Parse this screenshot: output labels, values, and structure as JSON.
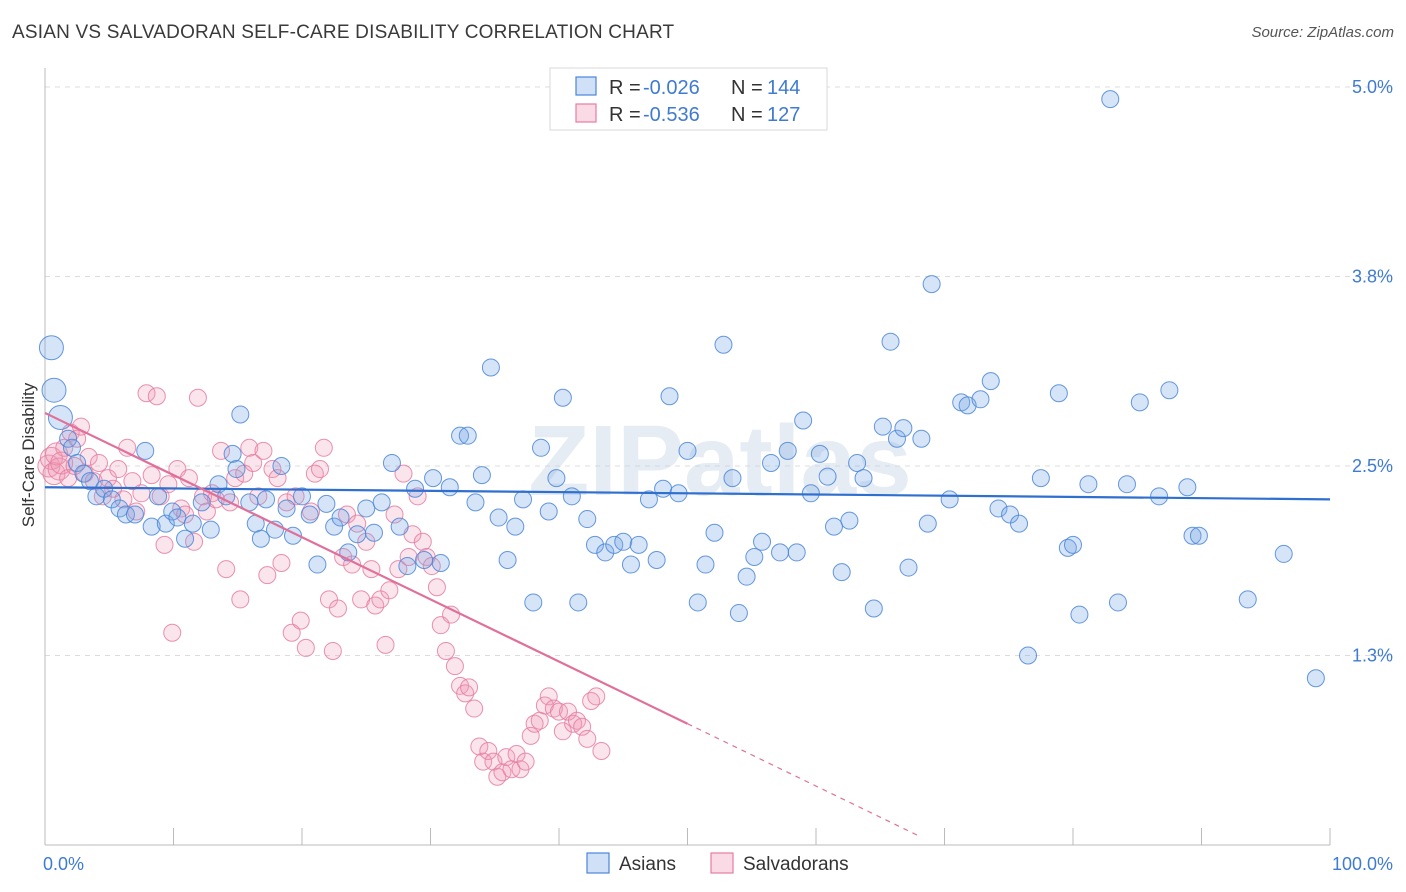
{
  "title": "ASIAN VS SALVADORAN SELF-CARE DISABILITY CORRELATION CHART",
  "source": "Source: ZipAtlas.com",
  "watermark": "ZIPatlas",
  "colors": {
    "asian_fill": "rgba(120,165,230,0.30)",
    "asian_stroke": "#4a86d8",
    "asian_line": "#2f6fd0",
    "salvadoran_fill": "rgba(240,150,180,0.25)",
    "salvadoran_stroke": "#e67ca0",
    "salvadoran_line": "#e0709a",
    "tick_text": "#3f7bd1",
    "grid": "#dcdcdc"
  },
  "legend": {
    "asian": {
      "r_label": "R =",
      "r_value": "-0.026",
      "n_label": "N =",
      "n_value": "144"
    },
    "salvadoran": {
      "r_label": "R =",
      "r_value": "-0.536",
      "n_label": "N =",
      "n_value": "127"
    }
  },
  "bottom_legend": [
    "Asians",
    "Salvadorans"
  ],
  "chart_data": {
    "type": "scatter",
    "title": "ASIAN VS SALVADORAN SELF-CARE DISABILITY CORRELATION CHART",
    "xlabel": "",
    "ylabel": "Self-Care Disability",
    "xlim": [
      0,
      100
    ],
    "ylim": [
      0.0,
      5.0
    ],
    "x_tick_labels": [
      "0.0%",
      "100.0%"
    ],
    "y_ticks": [
      1.25,
      2.5,
      3.75,
      5.0
    ],
    "y_tick_labels": [
      "1.3%",
      "2.5%",
      "3.8%",
      "5.0%"
    ],
    "grid": true,
    "legend_position": "top-center",
    "series": [
      {
        "name": "Asians",
        "r": -0.026,
        "n": 144,
        "trend": {
          "x": [
            0,
            100
          ],
          "y": [
            2.36,
            2.28
          ]
        },
        "points": [
          [
            0.5,
            3.28
          ],
          [
            0.7,
            3.0
          ],
          [
            1.2,
            2.82
          ],
          [
            1.8,
            2.68
          ],
          [
            2.1,
            2.62
          ],
          [
            2.5,
            2.52
          ],
          [
            3.0,
            2.45
          ],
          [
            3.5,
            2.4
          ],
          [
            4.0,
            2.3
          ],
          [
            4.6,
            2.35
          ],
          [
            5.2,
            2.28
          ],
          [
            5.8,
            2.22
          ],
          [
            6.3,
            2.18
          ],
          [
            7.0,
            2.18
          ],
          [
            7.8,
            2.6
          ],
          [
            8.3,
            2.1
          ],
          [
            8.8,
            2.3
          ],
          [
            9.4,
            2.12
          ],
          [
            9.9,
            2.2
          ],
          [
            10.3,
            2.16
          ],
          [
            10.9,
            2.02
          ],
          [
            11.5,
            2.12
          ],
          [
            12.2,
            2.26
          ],
          [
            12.9,
            2.08
          ],
          [
            13.5,
            2.38
          ],
          [
            14.1,
            2.3
          ],
          [
            14.6,
            2.58
          ],
          [
            14.9,
            2.48
          ],
          [
            15.2,
            2.84
          ],
          [
            15.9,
            2.26
          ],
          [
            16.4,
            2.12
          ],
          [
            16.8,
            2.02
          ],
          [
            17.2,
            2.28
          ],
          [
            17.9,
            2.08
          ],
          [
            18.4,
            2.5
          ],
          [
            18.8,
            2.22
          ],
          [
            19.3,
            2.04
          ],
          [
            20.0,
            2.3
          ],
          [
            20.6,
            2.18
          ],
          [
            21.2,
            1.85
          ],
          [
            21.9,
            2.25
          ],
          [
            22.5,
            2.1
          ],
          [
            23.0,
            2.16
          ],
          [
            23.6,
            1.93
          ],
          [
            24.3,
            2.05
          ],
          [
            25.0,
            2.22
          ],
          [
            25.6,
            2.06
          ],
          [
            26.2,
            2.26
          ],
          [
            27.0,
            2.52
          ],
          [
            27.6,
            2.1
          ],
          [
            28.2,
            1.84
          ],
          [
            28.8,
            2.35
          ],
          [
            29.5,
            1.88
          ],
          [
            30.2,
            2.42
          ],
          [
            30.8,
            1.86
          ],
          [
            31.5,
            2.36
          ],
          [
            32.3,
            2.7
          ],
          [
            32.9,
            2.7
          ],
          [
            33.5,
            2.26
          ],
          [
            34.0,
            2.44
          ],
          [
            34.7,
            3.15
          ],
          [
            35.3,
            2.16
          ],
          [
            36.0,
            1.88
          ],
          [
            36.6,
            2.1
          ],
          [
            37.2,
            2.28
          ],
          [
            38.0,
            1.6
          ],
          [
            38.6,
            2.62
          ],
          [
            39.2,
            2.2
          ],
          [
            39.8,
            2.42
          ],
          [
            40.3,
            2.95
          ],
          [
            41.0,
            2.3
          ],
          [
            41.5,
            1.6
          ],
          [
            42.2,
            2.15
          ],
          [
            42.8,
            1.98
          ],
          [
            43.6,
            1.93
          ],
          [
            44.3,
            1.98
          ],
          [
            45.0,
            2.0
          ],
          [
            45.6,
            1.85
          ],
          [
            46.2,
            1.98
          ],
          [
            47.0,
            2.28
          ],
          [
            47.6,
            1.88
          ],
          [
            48.1,
            2.35
          ],
          [
            48.6,
            2.96
          ],
          [
            49.3,
            2.32
          ],
          [
            50.0,
            2.6
          ],
          [
            50.8,
            1.6
          ],
          [
            51.4,
            1.85
          ],
          [
            52.1,
            2.06
          ],
          [
            52.8,
            3.3
          ],
          [
            53.5,
            2.42
          ],
          [
            54.0,
            1.53
          ],
          [
            54.6,
            1.77
          ],
          [
            55.2,
            1.9
          ],
          [
            55.8,
            2.0
          ],
          [
            56.5,
            2.52
          ],
          [
            57.2,
            1.93
          ],
          [
            57.8,
            2.6
          ],
          [
            58.5,
            1.93
          ],
          [
            59.0,
            2.8
          ],
          [
            59.6,
            2.32
          ],
          [
            60.3,
            2.58
          ],
          [
            60.9,
            2.43
          ],
          [
            61.4,
            2.1
          ],
          [
            62.0,
            1.8
          ],
          [
            62.6,
            2.14
          ],
          [
            63.2,
            2.52
          ],
          [
            63.7,
            2.42
          ],
          [
            64.5,
            1.56
          ],
          [
            65.2,
            2.76
          ],
          [
            65.8,
            3.32
          ],
          [
            66.3,
            2.68
          ],
          [
            66.8,
            2.75
          ],
          [
            67.2,
            1.83
          ],
          [
            68.2,
            2.68
          ],
          [
            68.7,
            2.12
          ],
          [
            69.0,
            3.7
          ],
          [
            70.4,
            2.28
          ],
          [
            71.3,
            2.92
          ],
          [
            71.8,
            2.9
          ],
          [
            72.8,
            2.94
          ],
          [
            73.6,
            3.06
          ],
          [
            74.2,
            2.22
          ],
          [
            75.1,
            2.18
          ],
          [
            75.8,
            2.12
          ],
          [
            76.5,
            1.25
          ],
          [
            77.5,
            2.42
          ],
          [
            78.9,
            2.98
          ],
          [
            79.6,
            1.96
          ],
          [
            80.0,
            1.98
          ],
          [
            80.5,
            1.52
          ],
          [
            81.2,
            2.38
          ],
          [
            82.9,
            4.92
          ],
          [
            83.5,
            1.6
          ],
          [
            84.2,
            2.38
          ],
          [
            85.2,
            2.92
          ],
          [
            86.7,
            2.3
          ],
          [
            87.5,
            3.0
          ],
          [
            88.9,
            2.36
          ],
          [
            89.3,
            2.04
          ],
          [
            89.8,
            2.04
          ],
          [
            93.6,
            1.62
          ],
          [
            96.4,
            1.92
          ],
          [
            98.9,
            1.1
          ]
        ]
      },
      {
        "name": "Salvadorans",
        "r": -0.536,
        "n": 127,
        "trend": {
          "x": [
            0,
            50
          ],
          "y": [
            2.85,
            0.8
          ]
        },
        "trend_dashed": {
          "x": [
            50,
            68
          ],
          "y": [
            0.8,
            0.06
          ]
        },
        "points": [
          [
            0.3,
            2.5
          ],
          [
            0.5,
            2.55
          ],
          [
            0.7,
            2.45
          ],
          [
            0.9,
            2.58
          ],
          [
            1.1,
            2.48
          ],
          [
            1.3,
            2.52
          ],
          [
            1.5,
            2.62
          ],
          [
            1.8,
            2.42
          ],
          [
            2.0,
            2.72
          ],
          [
            2.3,
            2.5
          ],
          [
            2.5,
            2.68
          ],
          [
            2.8,
            2.76
          ],
          [
            3.1,
            2.45
          ],
          [
            3.4,
            2.56
          ],
          [
            3.8,
            2.4
          ],
          [
            4.2,
            2.52
          ],
          [
            4.5,
            2.3
          ],
          [
            4.9,
            2.42
          ],
          [
            5.3,
            2.35
          ],
          [
            5.7,
            2.48
          ],
          [
            6.1,
            2.28
          ],
          [
            6.4,
            2.62
          ],
          [
            6.8,
            2.4
          ],
          [
            7.1,
            2.2
          ],
          [
            7.5,
            2.32
          ],
          [
            7.9,
            2.98
          ],
          [
            8.3,
            2.44
          ],
          [
            8.7,
            2.96
          ],
          [
            9.0,
            2.3
          ],
          [
            9.3,
            1.98
          ],
          [
            9.6,
            2.38
          ],
          [
            9.9,
            1.4
          ],
          [
            10.3,
            2.48
          ],
          [
            10.6,
            2.22
          ],
          [
            10.9,
            2.18
          ],
          [
            11.2,
            2.42
          ],
          [
            11.6,
            2.0
          ],
          [
            11.9,
            2.95
          ],
          [
            12.3,
            2.3
          ],
          [
            12.6,
            2.2
          ],
          [
            13.0,
            2.32
          ],
          [
            13.3,
            2.28
          ],
          [
            13.7,
            2.6
          ],
          [
            14.1,
            1.82
          ],
          [
            14.4,
            2.26
          ],
          [
            14.8,
            2.42
          ],
          [
            15.2,
            1.62
          ],
          [
            15.5,
            2.45
          ],
          [
            15.9,
            2.62
          ],
          [
            16.2,
            2.52
          ],
          [
            16.6,
            2.3
          ],
          [
            17.0,
            2.6
          ],
          [
            17.3,
            1.78
          ],
          [
            17.7,
            2.48
          ],
          [
            18.1,
            2.42
          ],
          [
            18.4,
            1.86
          ],
          [
            18.8,
            2.26
          ],
          [
            19.2,
            1.4
          ],
          [
            19.5,
            2.3
          ],
          [
            19.9,
            1.48
          ],
          [
            20.3,
            1.3
          ],
          [
            20.7,
            2.2
          ],
          [
            21.0,
            2.45
          ],
          [
            21.4,
            2.48
          ],
          [
            21.7,
            2.62
          ],
          [
            22.1,
            1.62
          ],
          [
            22.4,
            1.28
          ],
          [
            22.8,
            1.56
          ],
          [
            23.2,
            1.9
          ],
          [
            23.5,
            2.18
          ],
          [
            23.9,
            1.85
          ],
          [
            24.3,
            2.12
          ],
          [
            24.6,
            1.62
          ],
          [
            25.0,
            2.0
          ],
          [
            25.4,
            1.82
          ],
          [
            25.7,
            1.58
          ],
          [
            26.1,
            1.62
          ],
          [
            26.5,
            1.32
          ],
          [
            26.8,
            1.68
          ],
          [
            27.2,
            2.18
          ],
          [
            27.5,
            1.82
          ],
          [
            27.9,
            2.45
          ],
          [
            28.3,
            1.9
          ],
          [
            28.6,
            2.05
          ],
          [
            29.0,
            2.3
          ],
          [
            29.4,
            2.0
          ],
          [
            29.7,
            1.9
          ],
          [
            30.1,
            1.84
          ],
          [
            30.5,
            1.7
          ],
          [
            30.8,
            1.45
          ],
          [
            31.2,
            1.28
          ],
          [
            31.6,
            1.52
          ],
          [
            31.9,
            1.18
          ],
          [
            32.3,
            1.05
          ],
          [
            32.7,
            1.0
          ],
          [
            33.0,
            1.04
          ],
          [
            33.4,
            0.9
          ],
          [
            33.8,
            0.65
          ],
          [
            34.1,
            0.55
          ],
          [
            34.5,
            0.62
          ],
          [
            34.9,
            0.55
          ],
          [
            35.2,
            0.45
          ],
          [
            35.6,
            0.48
          ],
          [
            35.9,
            0.58
          ],
          [
            36.3,
            0.5
          ],
          [
            36.7,
            0.6
          ],
          [
            37.0,
            0.5
          ],
          [
            37.4,
            0.55
          ],
          [
            37.8,
            0.72
          ],
          [
            38.1,
            0.8
          ],
          [
            38.5,
            0.82
          ],
          [
            38.9,
            0.92
          ],
          [
            39.2,
            0.98
          ],
          [
            39.6,
            0.9
          ],
          [
            40.0,
            0.88
          ],
          [
            40.3,
            0.75
          ],
          [
            40.7,
            0.88
          ],
          [
            41.1,
            0.8
          ],
          [
            41.4,
            0.82
          ],
          [
            41.8,
            0.78
          ],
          [
            42.2,
            0.7
          ],
          [
            42.5,
            0.95
          ],
          [
            42.9,
            0.98
          ],
          [
            43.3,
            0.62
          ]
        ]
      }
    ]
  }
}
